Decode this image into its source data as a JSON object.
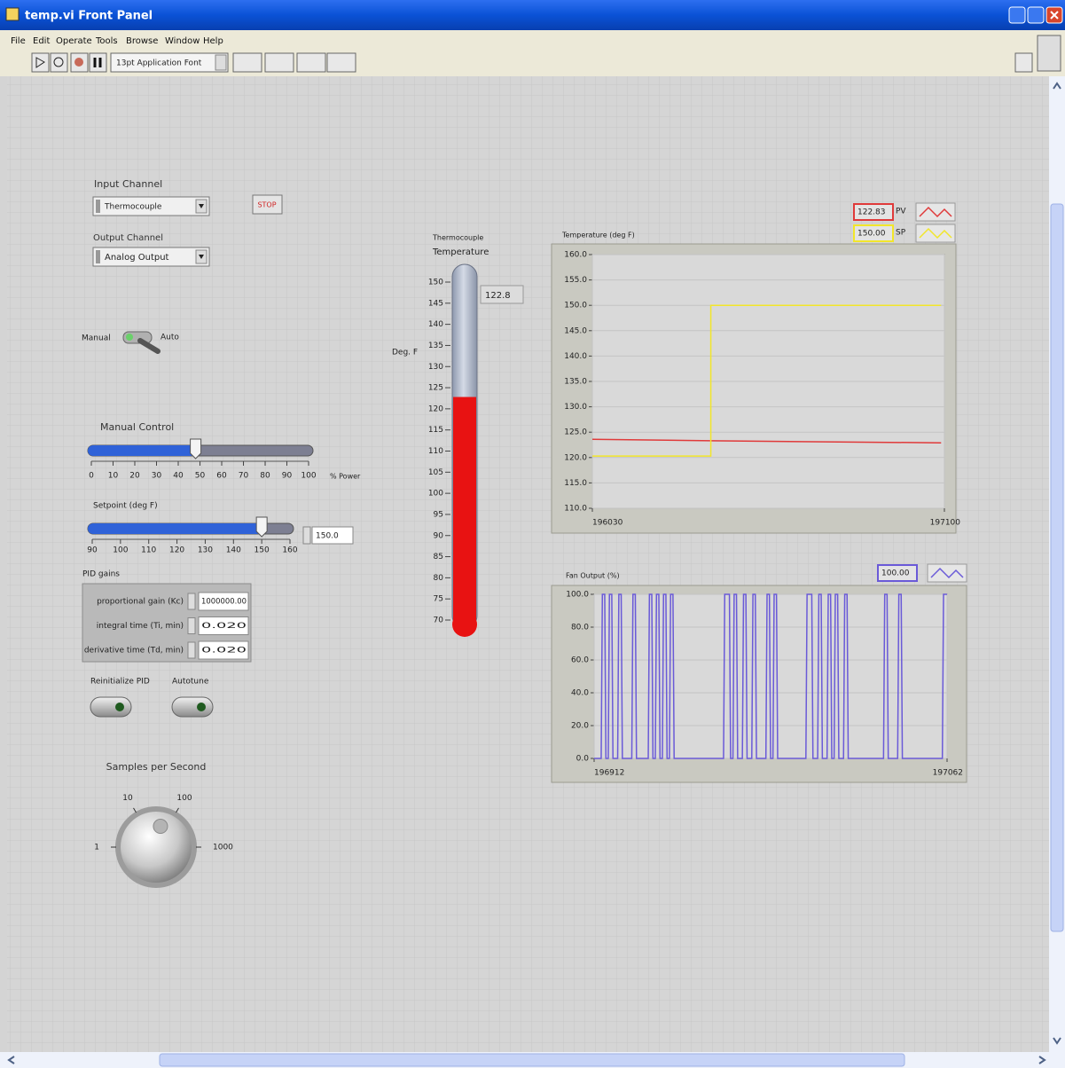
{
  "window": {
    "title": "temp.vi Front Panel"
  },
  "menu": [
    "File",
    "Edit",
    "Operate",
    "Tools",
    "Browse",
    "Window",
    "Help"
  ],
  "toolbar": {
    "font": "13pt Application Font"
  },
  "controls": {
    "input_channel": {
      "label": "Input Channel",
      "value": "Thermocouple"
    },
    "stop": "STOP",
    "output_channel": {
      "label": "Output Channel",
      "value": "Analog Output"
    },
    "mode_switch": {
      "off_label": "Manual",
      "on_label": "Auto"
    },
    "manual_control": {
      "label": "Manual Control",
      "unit": "% Power",
      "lim": [
        0,
        100
      ],
      "ticks": [
        0,
        10,
        20,
        30,
        40,
        50,
        60,
        70,
        80,
        90,
        100
      ],
      "value": 48
    },
    "setpoint": {
      "label": "Setpoint (deg F)",
      "lim": [
        90,
        160
      ],
      "ticks": [
        90,
        100,
        110,
        120,
        130,
        140,
        150,
        160
      ],
      "value": {
        "value": 150,
        "label": "150.0"
      }
    },
    "pid_gains": {
      "label": "PID gains",
      "rows": [
        {
          "label": "proportional gain (Kc)",
          "value": "1000000.00"
        },
        {
          "label": "integral time (Ti, min)",
          "value": "0.020"
        },
        {
          "label": "derivative time (Td, min)",
          "value": "0.020"
        }
      ]
    },
    "buttons": [
      "Reinitialize PID",
      "Autotune"
    ],
    "samples_knob": {
      "label": "Samples per Second",
      "log": true,
      "lim": [
        1,
        1000
      ],
      "ticks": [
        1,
        10,
        100,
        1000
      ],
      "value": 50
    }
  },
  "thermometer": {
    "label_lines": [
      "Thermocouple",
      "Temperature"
    ],
    "unit": "Deg. F",
    "lim": [
      70,
      150
    ],
    "ticks": [
      70,
      75,
      80,
      85,
      90,
      95,
      100,
      105,
      110,
      115,
      120,
      125,
      130,
      135,
      140,
      145,
      150
    ],
    "value": 122.8,
    "fill_color": "#e81212"
  },
  "charts": [
    {
      "type": "line",
      "title": "Temperature (deg F)",
      "grid": true,
      "xlim": [
        196030,
        197100
      ],
      "xticks": [
        196030,
        197100
      ],
      "ylim": [
        110,
        160
      ],
      "yticks": [
        {
          "value": 110,
          "label": "110.0"
        },
        {
          "value": 115,
          "label": "115.0"
        },
        {
          "value": 120,
          "label": "120.0"
        },
        {
          "value": 125,
          "label": "125.0"
        },
        {
          "value": 130,
          "label": "130.0"
        },
        {
          "value": 135,
          "label": "135.0"
        },
        {
          "value": 140,
          "label": "140.0"
        },
        {
          "value": 145,
          "label": "145.0"
        },
        {
          "value": 150,
          "label": "150.0"
        },
        {
          "value": 155,
          "label": "155.0"
        },
        {
          "value": 160,
          "label": "160.0"
        }
      ],
      "series": [
        {
          "name": "PV",
          "color": "#e03a3a",
          "display": 122.83,
          "x": [
            196030,
            196390,
            197090
          ],
          "values": [
            123.6,
            123.3,
            122.9
          ]
        },
        {
          "name": "SP",
          "color": "#f2e62a",
          "display": {
            "value": 150,
            "label": "150.00"
          },
          "x": [
            196030,
            196390,
            196390,
            197090
          ],
          "values": [
            120.3,
            120.3,
            150,
            150
          ]
        }
      ]
    },
    {
      "type": "line",
      "title": "Fan Output (%)",
      "grid": true,
      "xlim": [
        196912,
        197062
      ],
      "xticks": [
        196912,
        197062
      ],
      "ylim": [
        0,
        100
      ],
      "yticks": [
        {
          "value": 0,
          "label": "0.0"
        },
        {
          "value": 20,
          "label": "20.0"
        },
        {
          "value": 40,
          "label": "40.0"
        },
        {
          "value": 60,
          "label": "60.0"
        },
        {
          "value": 80,
          "label": "80.0"
        },
        {
          "value": 100,
          "label": "100.0"
        }
      ],
      "series": [
        {
          "color": "#6a5ad8",
          "display": {
            "value": 100,
            "label": "100.00"
          },
          "x": [
            196912,
            196915,
            196915.5,
            196916.5,
            196917,
            196918,
            196918.5,
            196919.5,
            196920,
            196922,
            196922.5,
            196923.5,
            196924,
            196928,
            196928.5,
            196929.5,
            196930,
            196935,
            196935.5,
            196936.5,
            196937,
            196938,
            196938.5,
            196939.5,
            196940,
            196941,
            196941.5,
            196942.5,
            196943,
            196944,
            196944.5,
            196945.5,
            196946,
            196967,
            196967.5,
            196969.5,
            196970,
            196971,
            196971.5,
            196972.5,
            196973,
            196975,
            196975.5,
            196976.5,
            196977,
            196979,
            196979.5,
            196980.5,
            196981,
            196985,
            196985.5,
            196986.5,
            196987,
            196988,
            196988.5,
            196989.5,
            196990,
            197002,
            197002.5,
            197004.5,
            197005,
            197007,
            197007.5,
            197008.5,
            197009,
            197011,
            197011.5,
            197012.5,
            197013,
            197014,
            197014.5,
            197015.5,
            197016,
            197018,
            197018.5,
            197019.5,
            197020,
            197035,
            197035.5,
            197036.5,
            197037,
            197041,
            197041.5,
            197042.5,
            197043,
            197060,
            197060.5,
            197062
          ],
          "values": [
            0,
            0,
            100,
            100,
            0,
            0,
            100,
            100,
            0,
            0,
            100,
            100,
            0,
            0,
            100,
            100,
            0,
            0,
            100,
            100,
            0,
            0,
            100,
            100,
            0,
            0,
            100,
            100,
            0,
            0,
            100,
            100,
            0,
            0,
            100,
            100,
            0,
            0,
            100,
            100,
            0,
            0,
            100,
            100,
            0,
            0,
            100,
            100,
            0,
            0,
            100,
            100,
            0,
            0,
            100,
            100,
            0,
            0,
            100,
            100,
            0,
            0,
            100,
            100,
            0,
            0,
            100,
            100,
            0,
            0,
            100,
            100,
            0,
            0,
            100,
            100,
            0,
            0,
            100,
            100,
            0,
            0,
            100,
            100,
            0,
            0,
            100,
            100
          ]
        }
      ]
    }
  ]
}
